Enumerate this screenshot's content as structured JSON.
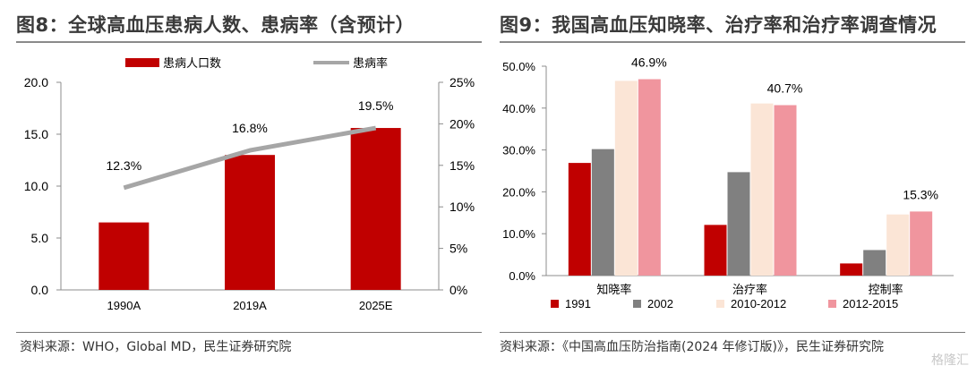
{
  "left": {
    "title": "图8：全球高血压患病人数、患病率（含预计）",
    "source": "资料来源：WHO，Global MD，民生证券研究院"
  },
  "right": {
    "title": "图9：我国高血压知晓率、治疗率和治疗率调查情况",
    "source": "资料来源：《中国高血压防治指南(2024 年修订版)》，民生证券研究院"
  },
  "watermark": "格隆汇",
  "chart_data": [
    {
      "type": "bar+line",
      "categories": [
        "1990A",
        "2019A",
        "2025E"
      ],
      "series": [
        {
          "name": "患病人口数",
          "kind": "bar",
          "axis": "left",
          "values": [
            6.5,
            13.0,
            15.6
          ],
          "color": "#c00000"
        },
        {
          "name": "患病率",
          "kind": "line",
          "axis": "right",
          "values": [
            12.3,
            16.8,
            19.5
          ],
          "color": "#a6a6a6"
        }
      ],
      "data_labels": [
        "12.3%",
        "16.8%",
        "19.5%"
      ],
      "left_axis": {
        "min": 0,
        "max": 20,
        "ticks": [
          "0.0",
          "5.0",
          "10.0",
          "15.0",
          "20.0"
        ]
      },
      "right_axis": {
        "min": 0,
        "max": 25,
        "ticks": [
          "0%",
          "5%",
          "10%",
          "15%",
          "20%",
          "25%"
        ]
      },
      "legend": "top",
      "grid": false
    },
    {
      "type": "bar",
      "categories": [
        "知晓率",
        "治疗率",
        "控制率"
      ],
      "series": [
        {
          "name": "1991",
          "values": [
            26.9,
            12.1,
            2.9
          ],
          "color": "#c00000"
        },
        {
          "name": "2002",
          "values": [
            30.2,
            24.7,
            6.1
          ],
          "color": "#808080"
        },
        {
          "name": "2010-2012",
          "values": [
            46.5,
            41.1,
            14.6
          ],
          "color": "#fbe5d6"
        },
        {
          "name": "2012-2015",
          "values": [
            46.9,
            40.7,
            15.3
          ],
          "color": "#f0959e"
        }
      ],
      "data_labels": [
        "46.9%",
        "40.7%",
        "15.3%"
      ],
      "y_axis": {
        "min": 0,
        "max": 50,
        "ticks": [
          "0.0%",
          "10.0%",
          "20.0%",
          "30.0%",
          "40.0%",
          "50.0%"
        ]
      },
      "legend": "bottom",
      "grid": false
    }
  ]
}
